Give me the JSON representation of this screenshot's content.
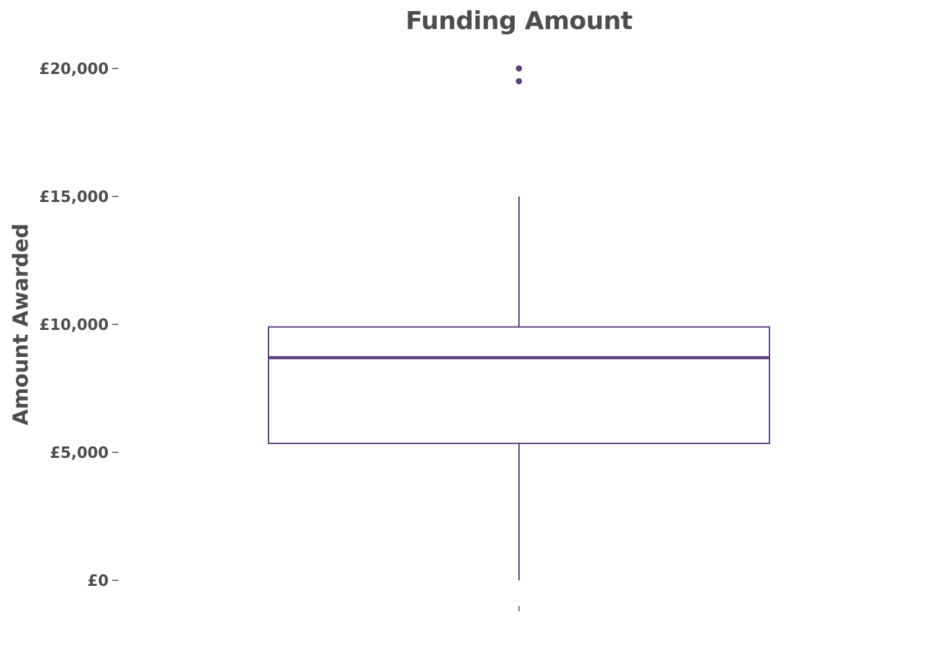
{
  "chart_data": {
    "type": "box",
    "title": "Funding Amount",
    "xlabel": "",
    "ylabel": "Amount Awarded",
    "ylim": [
      -1000,
      21000
    ],
    "yticks": [
      {
        "value": 0,
        "label": "£0"
      },
      {
        "value": 5000,
        "label": "£5,000"
      },
      {
        "value": 10000,
        "label": "£10,000"
      },
      {
        "value": 15000,
        "label": "£15,000"
      },
      {
        "value": 20000,
        "label": "£20,000"
      }
    ],
    "box": {
      "whisker_low": 0,
      "q1": 5350,
      "median": 8700,
      "q3": 9900,
      "whisker_high": 15000,
      "outliers": [
        19500,
        20000
      ]
    },
    "grid": false,
    "legend": "none",
    "colors": {
      "box": "#5b3f7e",
      "text": "#4d4d4d",
      "background": "#ffffff"
    }
  }
}
